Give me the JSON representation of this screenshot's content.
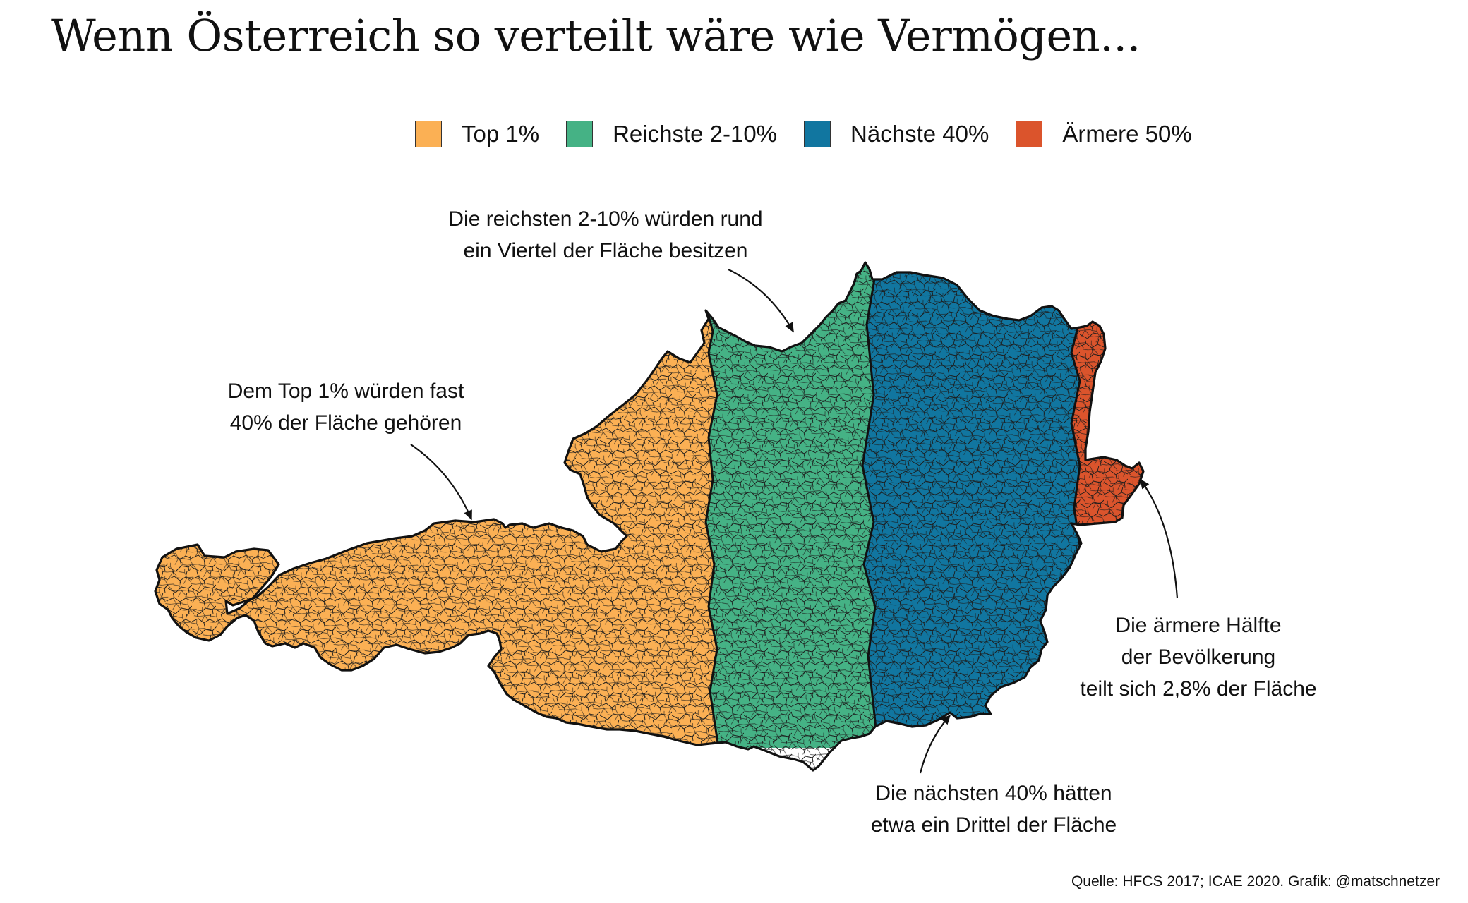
{
  "title": "Wenn Österreich so verteilt wäre wie Vermögen...",
  "legend": [
    {
      "label": "Top 1%",
      "color": "#FBB054"
    },
    {
      "label": "Reichste 2-10%",
      "color": "#45B285"
    },
    {
      "label": "Nächste 40%",
      "color": "#1176A0"
    },
    {
      "label": "Ärmere 50%",
      "color": "#DB542C"
    }
  ],
  "annotations": {
    "top1": [
      "Dem Top 1% würden fast",
      "40% der Fläche gehören"
    ],
    "richest": [
      "Die reichsten 2-10% würden rund",
      "ein Viertel der Fläche besitzen"
    ],
    "next40": [
      "Die nächsten 40% hätten",
      "etwa ein Drittel der Fläche"
    ],
    "poorer": [
      "Die ärmere Hälfte",
      "der Bevölkerung",
      "teilt sich 2,8% der Fläche"
    ]
  },
  "source": "Quelle: HFCS 2017; ICAE 2020. Grafik: @matschnetzer"
}
